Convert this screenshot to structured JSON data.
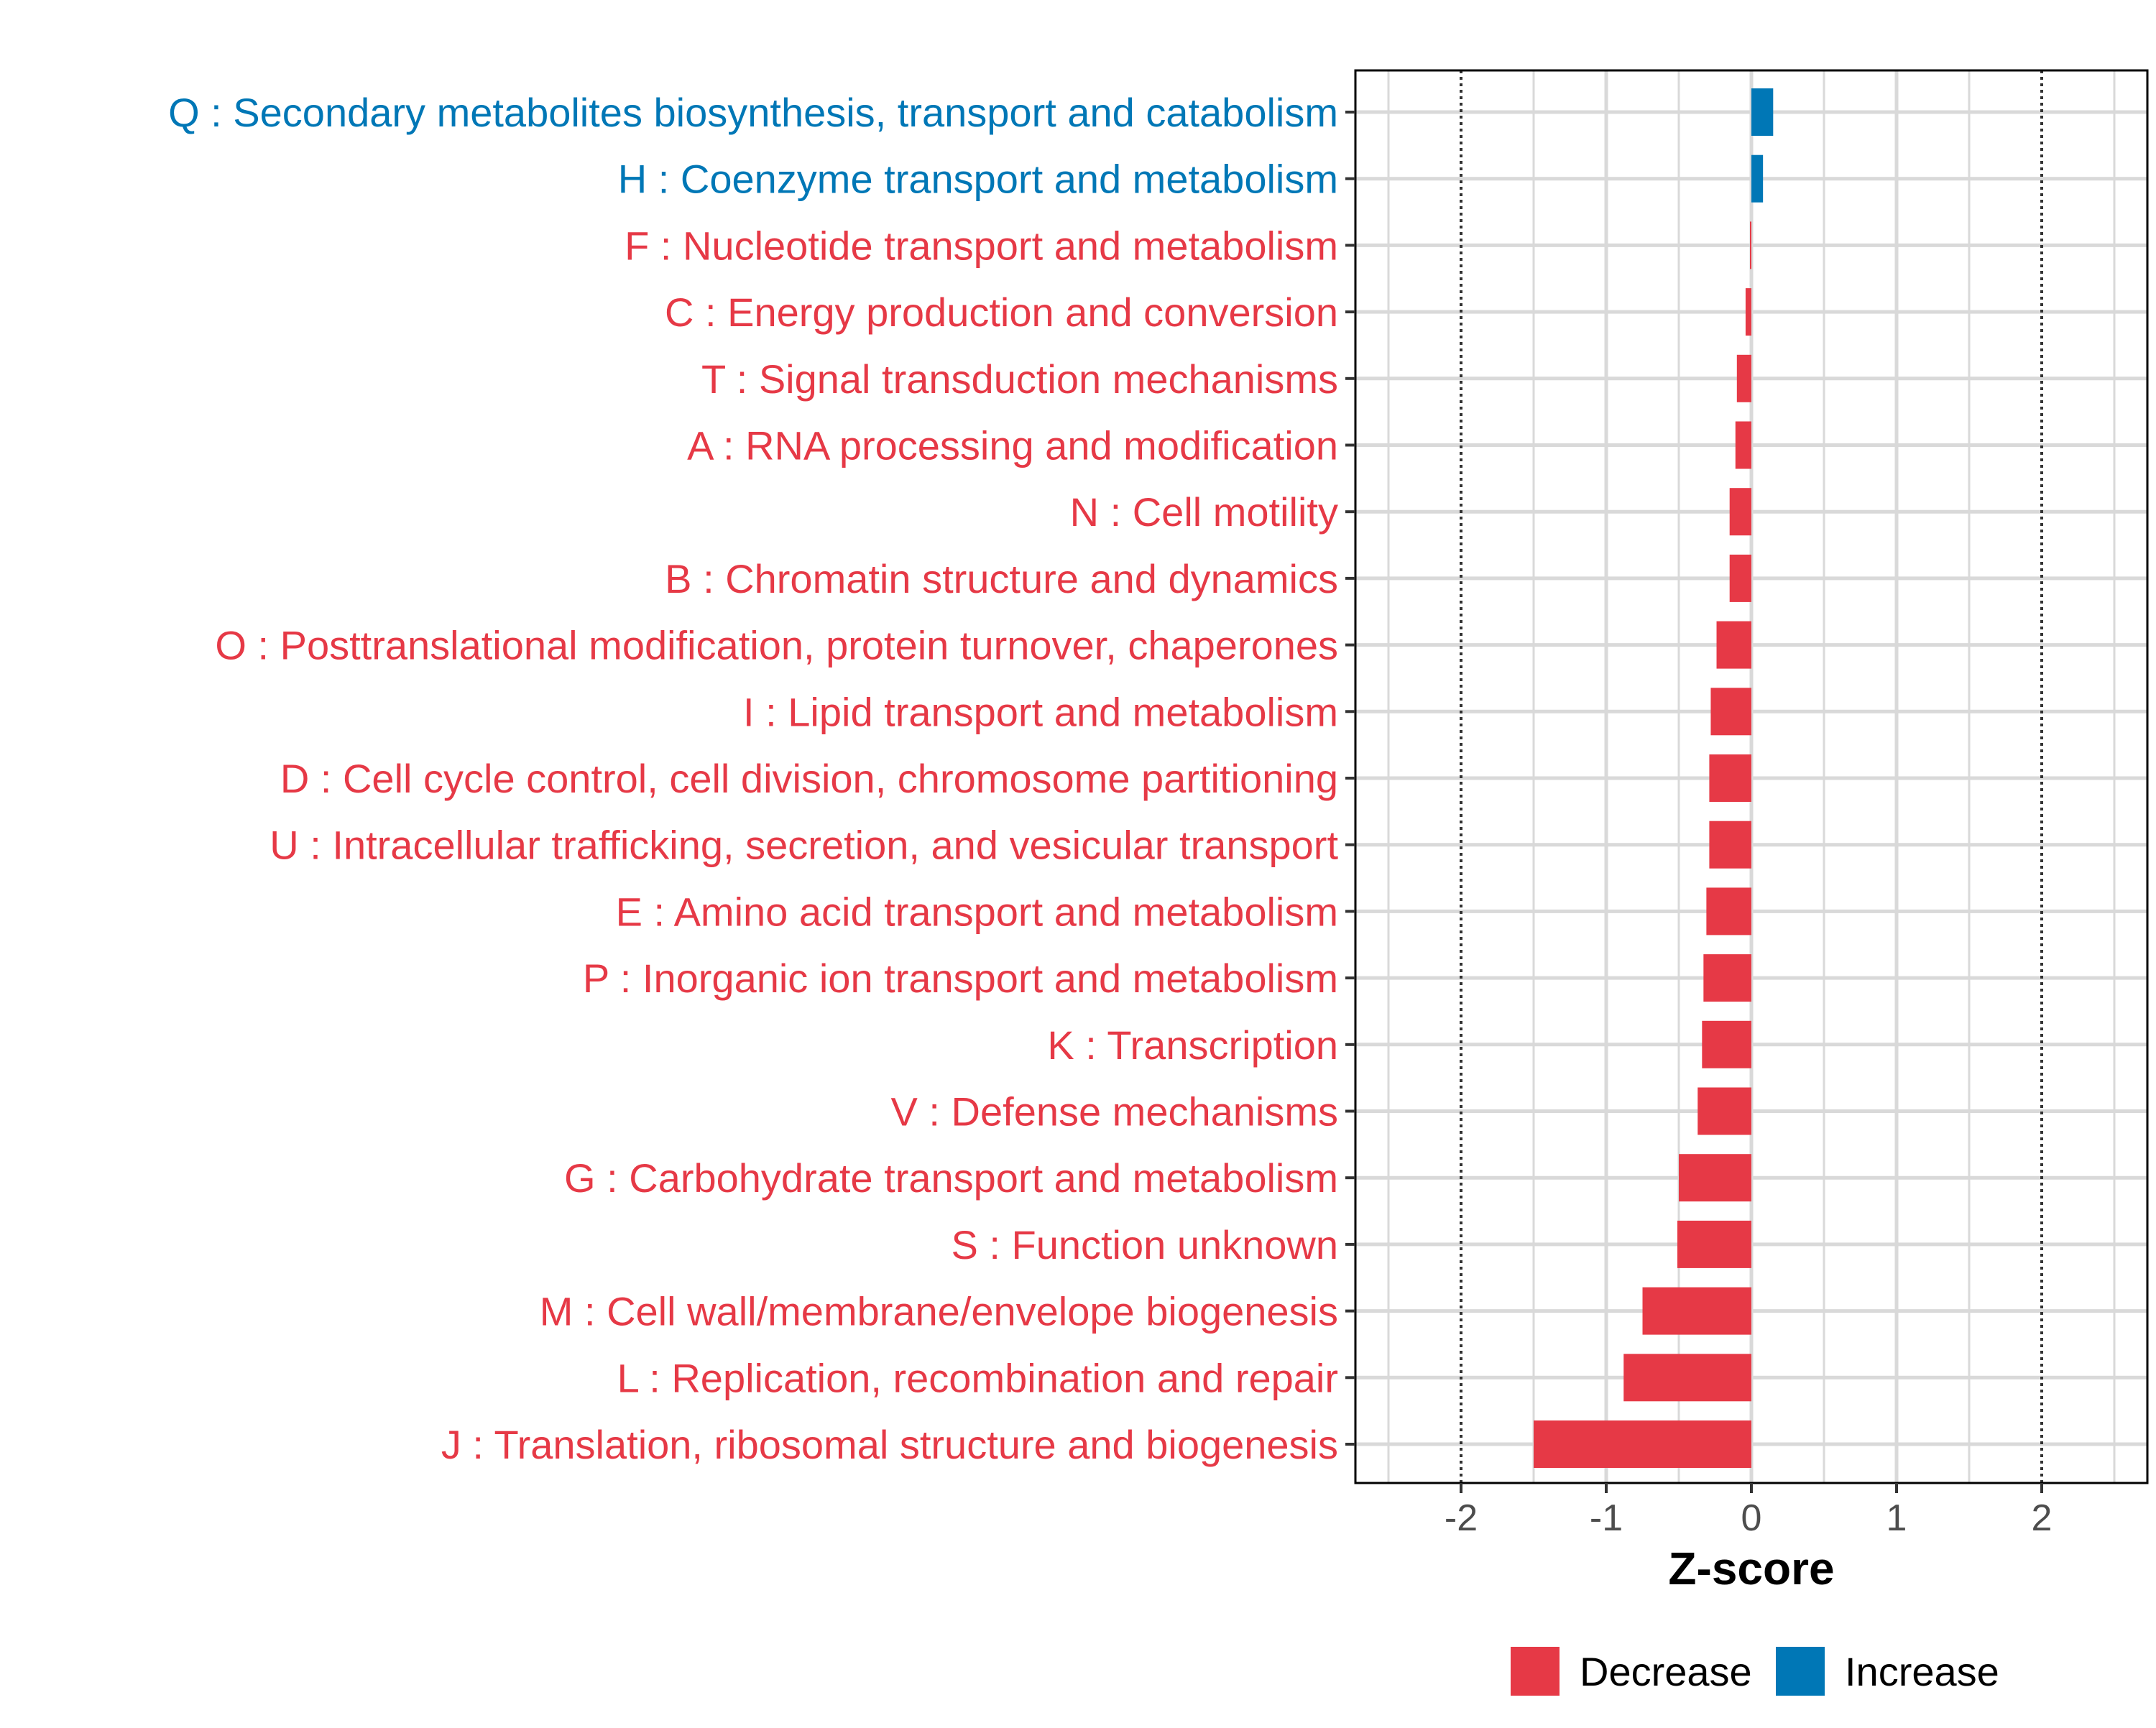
{
  "chart_data": {
    "type": "bar",
    "orientation": "horizontal",
    "xlabel": "Z-score",
    "xlim": [
      -2.72,
      2.72
    ],
    "xticks": [
      -2,
      -1,
      0,
      1,
      2
    ],
    "xtick_labels": [
      "-2",
      "-1",
      "0",
      "1",
      "2"
    ],
    "reference_lines": [
      -2,
      2
    ],
    "grid": true,
    "legend_position": "bottom",
    "categories": [
      "Q : Secondary metabolites biosynthesis, transport and catabolism",
      "H : Coenzyme transport and metabolism",
      "F : Nucleotide transport and metabolism",
      "C : Energy production and conversion",
      "T : Signal transduction mechanisms",
      "A : RNA processing and modification",
      "N : Cell motility",
      "B : Chromatin structure and dynamics",
      "O : Posttranslational modification, protein turnover, chaperones",
      "I : Lipid transport and metabolism",
      "D : Cell cycle control, cell division, chromosome partitioning",
      "U : Intracellular trafficking, secretion, and vesicular transport",
      "E : Amino acid transport and metabolism",
      "P : Inorganic ion transport and metabolism",
      "K : Transcription",
      "V : Defense mechanisms",
      "G : Carbohydrate transport and metabolism",
      "S : Function unknown",
      "M : Cell wall/membrane/envelope biogenesis",
      "L : Replication, recombination and repair",
      "J : Translation, ribosomal structure and biogenesis"
    ],
    "values": [
      0.15,
      0.08,
      -0.01,
      -0.04,
      -0.1,
      -0.11,
      -0.15,
      -0.15,
      -0.24,
      -0.28,
      -0.29,
      -0.29,
      -0.31,
      -0.33,
      -0.34,
      -0.37,
      -0.5,
      -0.51,
      -0.75,
      -0.88,
      -1.5
    ],
    "groups": [
      "Increase",
      "Increase",
      "Decrease",
      "Decrease",
      "Decrease",
      "Decrease",
      "Decrease",
      "Decrease",
      "Decrease",
      "Decrease",
      "Decrease",
      "Decrease",
      "Decrease",
      "Decrease",
      "Decrease",
      "Decrease",
      "Decrease",
      "Decrease",
      "Decrease",
      "Decrease",
      "Decrease"
    ],
    "legend": [
      {
        "name": "Decrease",
        "color": "#e63946"
      },
      {
        "name": "Increase",
        "color": "#0077b6"
      }
    ]
  }
}
